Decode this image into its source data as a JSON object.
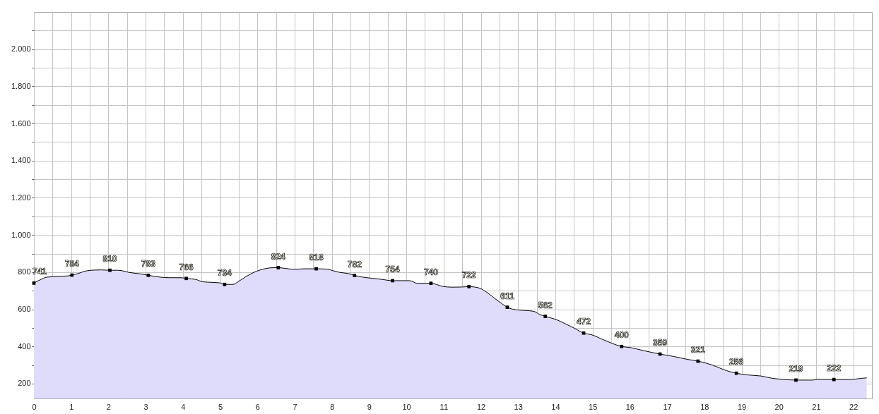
{
  "chart_data": {
    "type": "area",
    "xlim": [
      0,
      22.5
    ],
    "xticks": [
      0,
      {
        "value": 0.5,
        "label": null
      },
      1,
      {
        "value": 1.5,
        "label": null
      },
      2,
      {
        "value": 2.5,
        "label": null
      },
      3,
      {
        "value": 3.5,
        "label": null
      },
      4,
      {
        "value": 4.5,
        "label": null
      },
      5,
      {
        "value": 5.5,
        "label": null
      },
      6,
      {
        "value": 6.5,
        "label": null
      },
      7,
      {
        "value": 7.5,
        "label": null
      },
      8,
      {
        "value": 8.5,
        "label": null
      },
      9,
      {
        "value": 9.5,
        "label": null
      },
      10,
      {
        "value": 10.5,
        "label": null
      },
      11,
      {
        "value": 11.5,
        "label": null
      },
      12,
      {
        "value": 12.5,
        "label": null
      },
      13,
      {
        "value": 13.5,
        "label": null
      },
      14,
      {
        "value": 14.5,
        "label": null
      },
      15,
      {
        "value": 15.5,
        "label": null
      },
      16,
      {
        "value": 16.5,
        "label": null
      },
      17,
      {
        "value": 17.5,
        "label": null
      },
      18,
      {
        "value": 18.5,
        "label": null
      },
      19,
      {
        "value": 19.5,
        "label": null
      },
      20,
      {
        "value": 20.5,
        "label": null
      },
      21,
      {
        "value": 21.5,
        "label": null
      },
      22
    ],
    "ylim": [
      120,
      2200
    ],
    "yticks": [
      200,
      {
        "value": 300,
        "label": null
      },
      400,
      {
        "value": 500,
        "label": null
      },
      600,
      {
        "value": 700,
        "label": null
      },
      800,
      {
        "value": 900,
        "label": null
      },
      {
        "value": 1000,
        "label": "1.000"
      },
      {
        "value": 1100,
        "label": null
      },
      {
        "value": 1200,
        "label": "1.200"
      },
      {
        "value": 1300,
        "label": null
      },
      {
        "value": 1400,
        "label": "1.400"
      },
      {
        "value": 1500,
        "label": null
      },
      {
        "value": 1600,
        "label": "1.600"
      },
      {
        "value": 1700,
        "label": null
      },
      {
        "value": 1800,
        "label": "1.800"
      },
      {
        "value": 1900,
        "label": null
      },
      {
        "value": 2000,
        "label": "2.000"
      },
      {
        "value": 2100,
        "label": null
      }
    ],
    "grid": true,
    "series": [
      {
        "color": "#dedcfa",
        "x": [
          0,
          0.16,
          0.35,
          0.67,
          0.92,
          1.02,
          1.18,
          1.37,
          1.62,
          1.81,
          2.04,
          2.25,
          2.38,
          2.54,
          2.88,
          3.07,
          3.39,
          3.64,
          3.96,
          4.09,
          4.34,
          4.53,
          4.78,
          5.0,
          5.12,
          5.35,
          5.48,
          5.67,
          5.98,
          6.24,
          6.43,
          6.56,
          6.68,
          6.99,
          7.25,
          7.58,
          7.88,
          8.01,
          8.2,
          8.45,
          8.61,
          8.83,
          9.08,
          9.34,
          9.63,
          10.09,
          10.29,
          10.66,
          10.98,
          11.23,
          11.49,
          11.68,
          11.93,
          12.12,
          12.37,
          12.56,
          12.71,
          13.0,
          13.26,
          13.45,
          13.57,
          13.73,
          14.02,
          14.27,
          14.52,
          14.76,
          14.97,
          15.28,
          15.78,
          16.04,
          16.36,
          16.81,
          17.18,
          17.56,
          17.83,
          18.32,
          18.51,
          18.86,
          19.14,
          19.52,
          19.84,
          20.03,
          20.46,
          20.91,
          21.04,
          21.48,
          21.92,
          22.2,
          22.36
        ],
        "values": [
          741,
          758,
          773,
          777,
          780,
          784,
          792,
          805,
          811,
          812,
          810,
          810,
          807,
          799,
          790,
          783,
          773,
          770,
          770,
          766,
          761,
          748,
          745,
          742,
          734,
          734,
          748,
          773,
          805,
          820,
          824,
          824,
          822,
          815,
          818,
          818,
          816,
          809,
          799,
          792,
          782,
          773,
          767,
          761,
          754,
          754,
          740,
          740,
          723,
          719,
          720,
          722,
          716,
          697,
          659,
          631,
          611,
          596,
          593,
          587,
          573,
          562,
          545,
          522,
          497,
          472,
          463,
          437,
          400,
          393,
          378,
          359,
          346,
          330,
          321,
          292,
          276,
          256,
          247,
          241,
          228,
          224,
          219,
          219,
          223,
          222,
          222,
          228,
          231
        ]
      },
      {
        "type": "scatter",
        "color": "#000000",
        "marker": "square",
        "x": [
          0,
          1.02,
          2.04,
          3.07,
          4.09,
          5.12,
          6.56,
          7.58,
          8.61,
          9.63,
          10.66,
          11.68,
          12.71,
          13.73,
          14.76,
          15.78,
          16.81,
          17.83,
          18.86,
          20.46,
          21.48
        ],
        "values": [
          741,
          784,
          810,
          783,
          766,
          734,
          824,
          818,
          782,
          754,
          740,
          722,
          611,
          562,
          472,
          400,
          359,
          321,
          256,
          219,
          222
        ],
        "value_labels": [
          "741",
          "784",
          "810",
          "783",
          "766",
          "734",
          "824",
          "818",
          "782",
          "754",
          "740",
          "722",
          "611",
          "562",
          "472",
          "400",
          "359",
          "321",
          "256",
          "219",
          "222"
        ]
      }
    ]
  }
}
